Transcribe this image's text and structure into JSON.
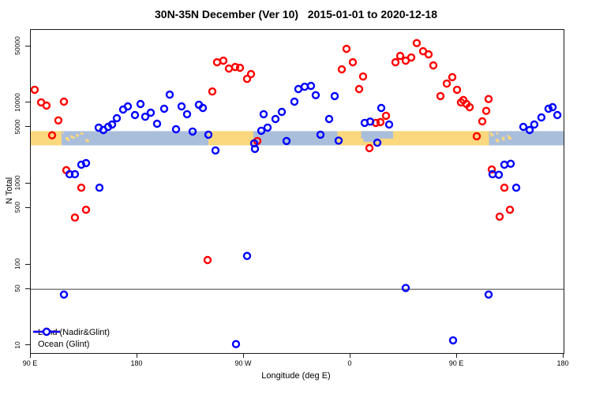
{
  "title": "30N-35N December (Ver 10)   2015-01-01 to 2020-12-18",
  "axes": {
    "y_label": "N Total",
    "x_label": "Longitude (deg E)",
    "y_ticks": [
      {
        "v": 50000,
        "label": "50000"
      },
      {
        "v": 10000,
        "label": "10000"
      },
      {
        "v": 5000,
        "label": "5000"
      },
      {
        "v": 1000,
        "label": "1000"
      },
      {
        "v": 500,
        "label": "500"
      },
      {
        "v": 100,
        "label": "100"
      },
      {
        "v": 50,
        "label": "50"
      },
      {
        "v": 10,
        "label": "10"
      }
    ],
    "x_ticks": [
      {
        "deg": 90,
        "label": "90 E"
      },
      {
        "deg": 180,
        "label": "180"
      },
      {
        "deg": 270,
        "label": "90 W"
      },
      {
        "deg": 360,
        "label": "0"
      },
      {
        "deg": 450,
        "label": "90 E"
      },
      {
        "deg": 540,
        "label": "180"
      }
    ]
  },
  "legend": [
    {
      "label": "Land (Nadir&Glint)",
      "color": "#FF0000"
    },
    {
      "label": "Ocean (Glint)",
      "color": "#0000FF"
    }
  ],
  "colors": {
    "land_marker": "#FF0000",
    "ocean_marker": "#0000FF",
    "band_land": "#FBD77D",
    "band_ocean": "#A9BEDB",
    "reference_line": "#3a3a3a",
    "frame": "#1a1a1a"
  },
  "chart_data": {
    "type": "scatter",
    "title": "30N-35N December (Ver 10)   2015-01-01 to 2020-12-18",
    "xlabel": "Longitude (deg E)",
    "ylabel": "N Total",
    "x_axis_deg_range": [
      90,
      540
    ],
    "x_axis_note": "longitude axis wraps: 90E to 180, 90W, 0, 90E, 180; deg>180 means deg-360",
    "y_scale": "log10",
    "ylim": [
      8,
      60000
    ],
    "grid": false,
    "reference_line_n": 50,
    "legend_position": "bottom-left",
    "land_ocean_band": {
      "n_top": 4500,
      "n_bottom": 3000,
      "segments": [
        {
          "from_deg": 90,
          "to_deg": 116,
          "kind": "land"
        },
        {
          "from_deg": 116,
          "to_deg": 140,
          "kind": "islands"
        },
        {
          "from_deg": 140,
          "to_deg": 240,
          "kind": "ocean"
        },
        {
          "from_deg": 240,
          "to_deg": 278,
          "kind": "land"
        },
        {
          "from_deg": 278,
          "to_deg": 349,
          "kind": "ocean"
        },
        {
          "from_deg": 349,
          "to_deg": 369,
          "kind": "land"
        },
        {
          "from_deg": 369,
          "to_deg": 396,
          "kind": "land_sea_top"
        },
        {
          "from_deg": 396,
          "to_deg": 477,
          "kind": "land"
        },
        {
          "from_deg": 477,
          "to_deg": 500,
          "kind": "islands"
        },
        {
          "from_deg": 500,
          "to_deg": 540,
          "kind": "ocean"
        }
      ]
    },
    "series": [
      {
        "name": "Land (Nadir&Glint)",
        "color": "#FF0000",
        "points_deg_n": [
          [
            93.3,
            14600
          ],
          [
            98.7,
            10200
          ],
          [
            103.3,
            9300
          ],
          [
            118,
            10400
          ],
          [
            113.3,
            6100
          ],
          [
            108,
            4000
          ],
          [
            120,
            1480
          ],
          [
            132.7,
            900
          ],
          [
            136.7,
            480
          ],
          [
            127.3,
            385
          ],
          [
            243.3,
            13900
          ],
          [
            247.3,
            31900
          ],
          [
            252.7,
            33400
          ],
          [
            257.3,
            26700
          ],
          [
            262.7,
            27900
          ],
          [
            266.7,
            27300
          ],
          [
            272.7,
            19900
          ],
          [
            276,
            22800
          ],
          [
            281.3,
            3400
          ],
          [
            239.3,
            115
          ],
          [
            352.7,
            26100
          ],
          [
            356.7,
            46700
          ],
          [
            362,
            31900
          ],
          [
            370.7,
            21300
          ],
          [
            367.3,
            14900
          ],
          [
            376,
            2770
          ],
          [
            381.3,
            5690
          ],
          [
            385.3,
            5810
          ],
          [
            390,
            6970
          ],
          [
            398,
            31900
          ],
          [
            402,
            38200
          ],
          [
            406.7,
            33400
          ],
          [
            411.3,
            36600
          ],
          [
            416,
            55000
          ],
          [
            421.3,
            43700
          ],
          [
            426,
            40000
          ],
          [
            430,
            29200
          ],
          [
            436,
            12200
          ],
          [
            441.3,
            17400
          ],
          [
            446,
            20900
          ],
          [
            450,
            14600
          ],
          [
            453.3,
            10200
          ],
          [
            455.3,
            10900
          ],
          [
            458,
            9730
          ],
          [
            460.7,
            8900
          ],
          [
            466.7,
            3890
          ],
          [
            471.3,
            5940
          ],
          [
            474.7,
            8000
          ],
          [
            476.7,
            11200
          ],
          [
            479.3,
            1510
          ],
          [
            490,
            900
          ],
          [
            494.7,
            480
          ],
          [
            486,
            395
          ]
        ]
      },
      {
        "name": "Ocean (Glint)",
        "color": "#0000FF",
        "points_deg_n": [
          [
            147.3,
            4970
          ],
          [
            151.3,
            4640
          ],
          [
            155.3,
            5080
          ],
          [
            158.7,
            5430
          ],
          [
            162.7,
            6500
          ],
          [
            168,
            8320
          ],
          [
            172,
            9100
          ],
          [
            178,
            7110
          ],
          [
            182.7,
            9730
          ],
          [
            186.7,
            6790
          ],
          [
            191.3,
            7600
          ],
          [
            196.7,
            5560
          ],
          [
            202.7,
            8500
          ],
          [
            207.3,
            12700
          ],
          [
            217.3,
            9100
          ],
          [
            222,
            7280
          ],
          [
            232,
            9530
          ],
          [
            235.3,
            8690
          ],
          [
            212.7,
            4750
          ],
          [
            226.7,
            4450
          ],
          [
            240,
            4070
          ],
          [
            246,
            2600
          ],
          [
            132.7,
            1730
          ],
          [
            136.7,
            1810
          ],
          [
            122.7,
            1320
          ],
          [
            127.3,
            1320
          ],
          [
            148,
            900
          ],
          [
            118,
            43
          ],
          [
            272.7,
            129
          ],
          [
            263.3,
            10.5
          ],
          [
            278.7,
            3180
          ],
          [
            279.3,
            2720
          ],
          [
            284.7,
            4550
          ],
          [
            286.7,
            7280
          ],
          [
            290,
            4980
          ],
          [
            296.7,
            6350
          ],
          [
            302,
            7780
          ],
          [
            306,
            3400
          ],
          [
            312.7,
            10400
          ],
          [
            316,
            14900
          ],
          [
            321.3,
            15900
          ],
          [
            326.7,
            16300
          ],
          [
            330.7,
            12500
          ],
          [
            334.7,
            4070
          ],
          [
            342,
            6350
          ],
          [
            346.7,
            12200
          ],
          [
            350,
            3440
          ],
          [
            372,
            5700
          ],
          [
            376.7,
            5900
          ],
          [
            386,
            8700
          ],
          [
            392.7,
            5430
          ],
          [
            382.7,
            3240
          ],
          [
            406.7,
            52
          ],
          [
            446.7,
            11.7
          ],
          [
            480,
            1320
          ],
          [
            485.3,
            1300
          ],
          [
            490,
            1730
          ],
          [
            495.3,
            1780
          ],
          [
            500,
            900
          ],
          [
            476.7,
            43
          ],
          [
            506,
            5080
          ],
          [
            511.3,
            4640
          ],
          [
            515.3,
            5430
          ],
          [
            521.3,
            6650
          ],
          [
            527.3,
            8500
          ],
          [
            530.7,
            8900
          ],
          [
            534.7,
            7110
          ]
        ]
      }
    ]
  }
}
